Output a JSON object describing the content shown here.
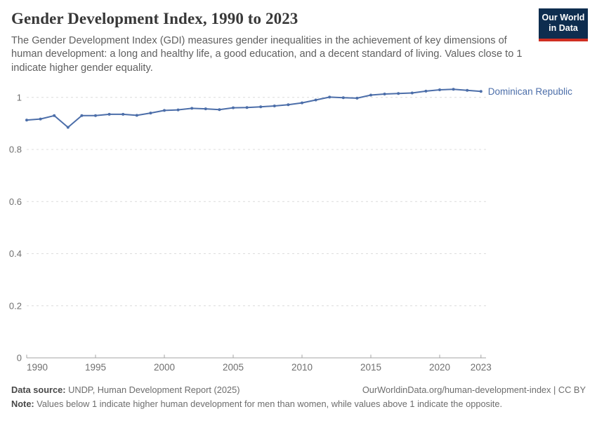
{
  "header": {
    "title": "Gender Development Index, 1990 to 2023",
    "subtitle": "The Gender Development Index (GDI) measures gender inequalities in the achievement of key dimensions of human development: a long and healthy life, a good education, and a decent standard of living. Values close to 1 indicate higher gender equality.",
    "logo": {
      "line1": "Our World",
      "line2": "in Data",
      "bg_color": "#0e2d4f",
      "accent_color": "#cf2e21"
    }
  },
  "chart_data": {
    "type": "line",
    "title": "Gender Development Index, 1990 to 2023",
    "xlabel": "",
    "ylabel": "",
    "xlim": [
      1990,
      2023
    ],
    "ylim": [
      0,
      1.05
    ],
    "grid": "horizontal-dashed",
    "legend_position": "end-of-line-label",
    "x_ticks": [
      1990,
      1995,
      2000,
      2005,
      2010,
      2015,
      2020,
      2023
    ],
    "y_ticks": [
      {
        "value": 0,
        "label": "0"
      },
      {
        "value": 0.2,
        "label": "0.2"
      },
      {
        "value": 0.4,
        "label": "0.4"
      },
      {
        "value": 0.6,
        "label": "0.6"
      },
      {
        "value": 0.8,
        "label": "0.8"
      },
      {
        "value": 1,
        "label": "1"
      }
    ],
    "series": [
      {
        "name": "Dominican Republic",
        "color": "#4c6ea9",
        "x": [
          1990,
          1991,
          1992,
          1993,
          1994,
          1995,
          1996,
          1997,
          1998,
          1999,
          2000,
          2001,
          2002,
          2003,
          2004,
          2005,
          2006,
          2007,
          2008,
          2009,
          2010,
          2011,
          2012,
          2013,
          2014,
          2015,
          2016,
          2017,
          2018,
          2019,
          2020,
          2021,
          2022,
          2023
        ],
        "values": [
          0.913,
          0.917,
          0.93,
          0.885,
          0.93,
          0.93,
          0.935,
          0.935,
          0.931,
          0.94,
          0.95,
          0.952,
          0.958,
          0.956,
          0.953,
          0.96,
          0.961,
          0.964,
          0.967,
          0.972,
          0.979,
          0.99,
          1.001,
          0.999,
          0.997,
          1.009,
          1.013,
          1.015,
          1.017,
          1.024,
          1.029,
          1.031,
          1.027,
          1.023
        ]
      }
    ],
    "colors": {
      "gridline": "#dcdcdc",
      "axis": "#a3a3a3",
      "tick_label": "#6f6f6f"
    }
  },
  "footer": {
    "datasource_label": "Data source:",
    "datasource_text": " UNDP, Human Development Report (2025)",
    "attribution": "OurWorldinData.org/human-development-index | CC BY",
    "note_label": "Note:",
    "note_text": " Values below 1 indicate higher human development for men than women, while values above 1 indicate the opposite."
  }
}
